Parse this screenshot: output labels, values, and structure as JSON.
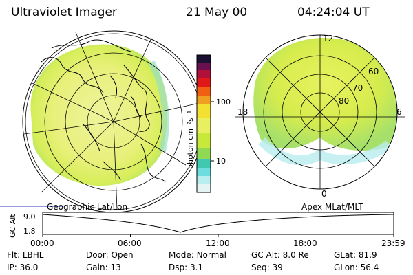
{
  "header": {
    "instrument": "Ultraviolet Imager",
    "date": "21 May 00",
    "time": "04:24:04 UT"
  },
  "colorbar": {
    "unit_label": "photon cm⁻²s⁻¹",
    "ticks": [
      "100",
      "10"
    ]
  },
  "left_map": {
    "title": "Geographic Lat/Lon"
  },
  "right_map": {
    "title": "Apex MLat/MLT",
    "mlt_labels": [
      "12",
      "18",
      "6",
      "0"
    ],
    "lat_labels": [
      "60",
      "70",
      "80"
    ]
  },
  "timeline": {
    "ylabel": "GC Alt",
    "y_ticks": [
      "9.0",
      "1.8"
    ],
    "x_ticks": [
      "00:00",
      "06:00",
      "12:00",
      "18:00",
      "23:59"
    ],
    "marker_time": "04:24"
  },
  "status": {
    "row1": [
      {
        "label": "Flt:",
        "value": "LBHL"
      },
      {
        "label": "Door:",
        "value": "Open"
      },
      {
        "label": "Mode:",
        "value": "Normal"
      },
      {
        "label": "GC Alt:",
        "value": "8.0 Re"
      },
      {
        "label": "GLat:",
        "value": "81.9"
      }
    ],
    "row2": [
      {
        "label": "IP:",
        "value": "36.0"
      },
      {
        "label": "Gain:",
        "value": "13"
      },
      {
        "label": "Dsp:",
        "value": "3.1"
      },
      {
        "label": "Seq:",
        "value": "39"
      },
      {
        "label": "GLon:",
        "value": "56.4"
      }
    ]
  }
}
